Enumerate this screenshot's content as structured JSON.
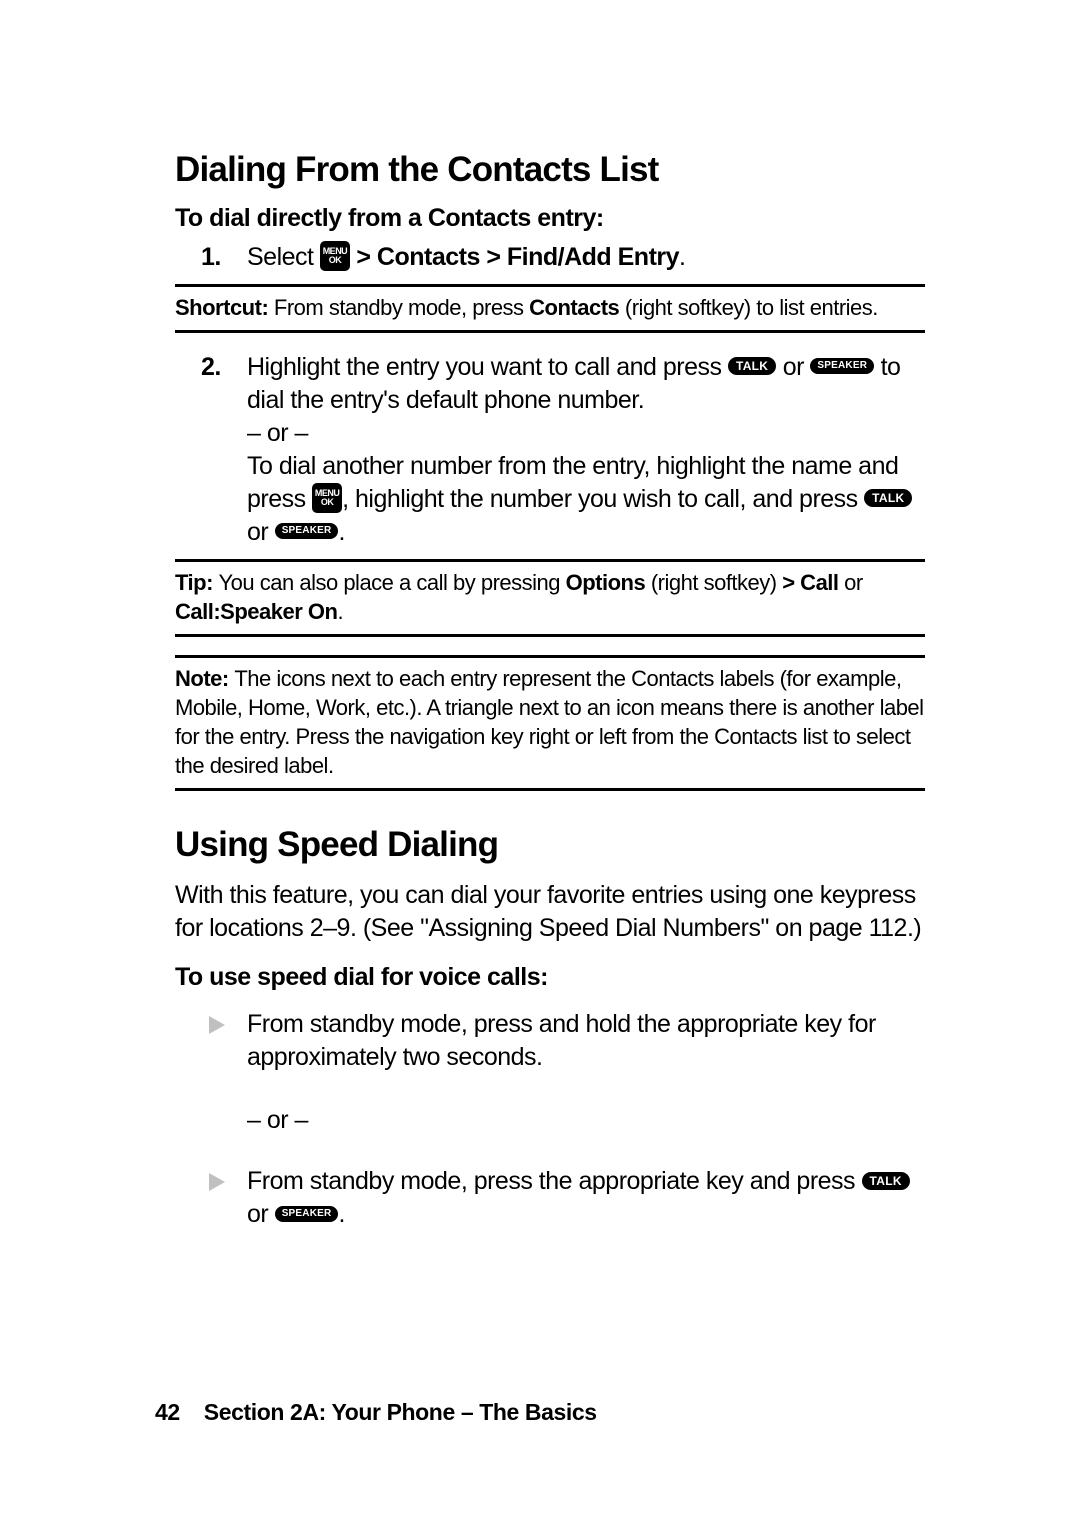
{
  "colors": {
    "text": "#000000",
    "background": "#ffffff",
    "rule": "#000000",
    "key_bg": "#000000",
    "key_fg": "#ffffff",
    "bullet_triangle": "#c0c0c0"
  },
  "typography": {
    "heading_fontsize_pt": 26,
    "body_fontsize_pt": 19,
    "note_fontsize_pt": 17,
    "footer_fontsize_pt": 17
  },
  "keys": {
    "menu_top": "MENU",
    "menu_bottom": "OK",
    "talk": "TALK",
    "speaker": "SPEAKER"
  },
  "section1": {
    "title": "Dialing From the Contacts List",
    "subtitle": "To dial directly from a Contacts entry:",
    "step1_num": "1.",
    "step1_a": "Select ",
    "step1_b": " > Contacts > Find/Add Entry",
    "step1_c": ".",
    "shortcut_label": "Shortcut: ",
    "shortcut_a": "From standby mode, press ",
    "shortcut_b": "Contacts",
    "shortcut_c": " (right softkey) to list entries.",
    "step2_num": "2.",
    "step2_a": "Highlight the entry you want to call and press ",
    "step2_b": " or ",
    "step2_c": " to dial the entry's default phone number.",
    "step2_or": "– or –",
    "step2_d": "To dial another number from the entry, highlight the name and press ",
    "step2_e": ", highlight the number you wish to call, and press ",
    "step2_f": " or ",
    "step2_g": ".",
    "tip_label": "Tip: ",
    "tip_a": "You can also place a call by pressing ",
    "tip_b": "Options",
    "tip_c": " (right softkey) ",
    "tip_d": "> Call",
    "tip_e": " or ",
    "tip_f": "Call:Speaker On",
    "tip_g": ".",
    "note_label": "Note: ",
    "note_body": "The icons next to each entry represent the Contacts labels (for example, Mobile, Home, Work, etc.). A triangle next to an icon means there is another label for the entry. Press the navigation key right or left from the Contacts list to select the desired label."
  },
  "section2": {
    "title": "Using Speed Dialing",
    "intro": "With this feature, you can dial your favorite entries using one keypress for locations 2–9. (See \"Assigning Speed Dial Numbers\" on page 112.)",
    "subtitle": "To use speed dial for voice calls:",
    "b1": "From standby mode, press and hold the appropriate key for approximately two seconds.",
    "or": "– or –",
    "b2_a": "From standby mode, press the appropriate key and press ",
    "b2_b": " or ",
    "b2_c": "."
  },
  "footer": {
    "page": "42",
    "text": "Section 2A: Your Phone – The Basics"
  }
}
